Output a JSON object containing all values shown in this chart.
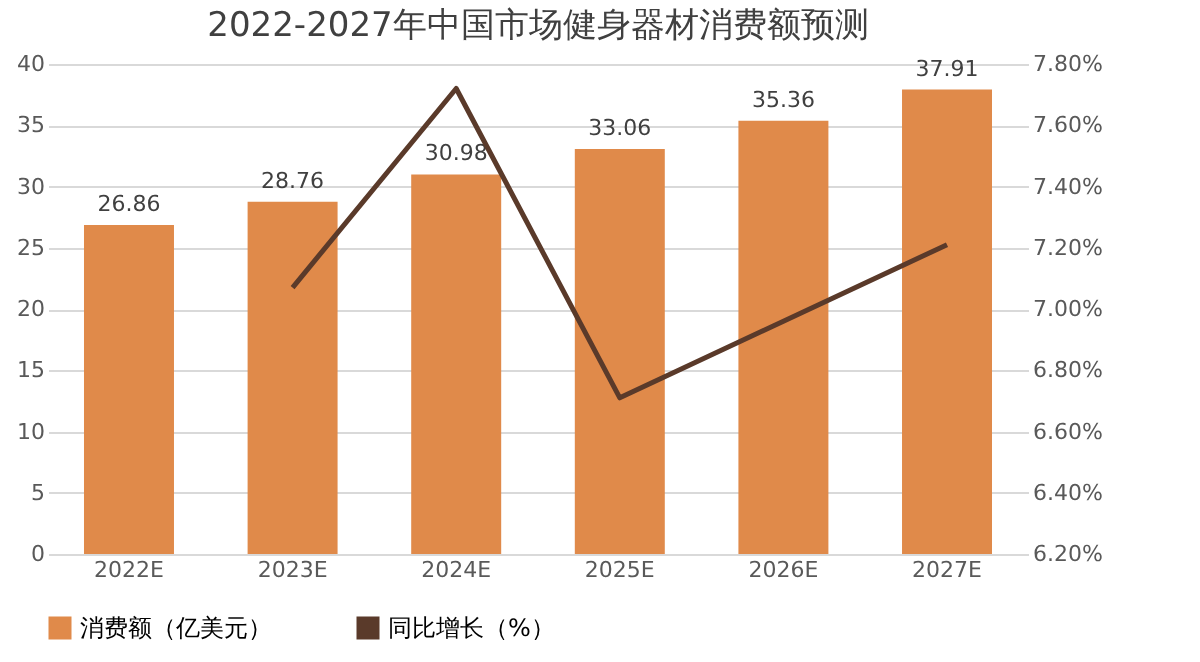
{
  "chart_data": {
    "type": "bar",
    "title": "2022-2027年中国市场健身器材消费额预测",
    "categories": [
      "2022E",
      "2023E",
      "2024E",
      "2025E",
      "2026E",
      "2027E"
    ],
    "series": [
      {
        "name": "消费额（亿美元）",
        "color": "#e08a4a",
        "values": [
          26.86,
          28.76,
          30.98,
          33.06,
          35.36,
          37.91
        ],
        "value_labels": [
          "26.86",
          "28.76",
          "30.98",
          "33.06",
          "35.36",
          "37.91"
        ]
      },
      {
        "name": "同比增长（%）",
        "type": "line",
        "axis": "y2",
        "color": "#5a3a2a",
        "values": [
          null,
          7.07,
          7.72,
          6.71,
          6.96,
          7.21
        ]
      }
    ],
    "ylim": [
      0,
      40
    ],
    "yticks": [
      0,
      5,
      10,
      15,
      20,
      25,
      30,
      35,
      40
    ],
    "y2lim": [
      6.2,
      7.8
    ],
    "y2ticks": [
      {
        "value": 6.2,
        "label": "6.20%"
      },
      {
        "value": 6.4,
        "label": "6.40%"
      },
      {
        "value": 6.6,
        "label": "6.60%"
      },
      {
        "value": 6.8,
        "label": "6.80%"
      },
      {
        "value": 7.0,
        "label": "7.00%"
      },
      {
        "value": 7.2,
        "label": "7.20%"
      },
      {
        "value": 7.4,
        "label": "7.40%"
      },
      {
        "value": 7.6,
        "label": "7.60%"
      },
      {
        "value": 7.8,
        "label": "7.80%"
      }
    ],
    "grid": "y",
    "legend": "bottom"
  }
}
